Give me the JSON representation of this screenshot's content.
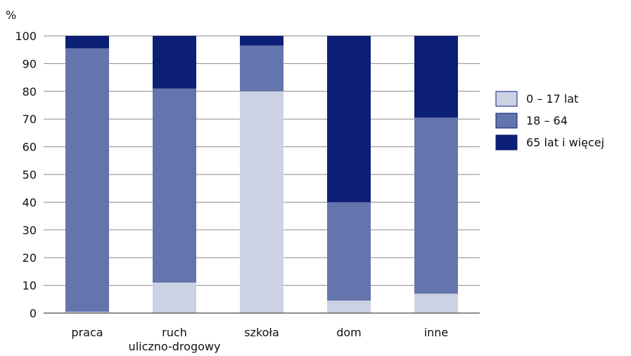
{
  "chart_data": {
    "type": "bar",
    "stacked": true,
    "ylabel": "%",
    "ylim": [
      0,
      100
    ],
    "yticks": [
      "0",
      "10",
      "20",
      "30",
      "40",
      "50",
      "60",
      "70",
      "80",
      "90",
      "100"
    ],
    "categories": [
      [
        "praca"
      ],
      [
        "ruch",
        "uliczno-drogowy"
      ],
      [
        "szkoła"
      ],
      [
        "dom"
      ],
      [
        "inne"
      ]
    ],
    "series": [
      {
        "name": "0 – 17 lat",
        "color": "#ccd1e4",
        "values": [
          0.5,
          11,
          80,
          4.5,
          7
        ]
      },
      {
        "name": "18 – 64",
        "color": "#6474ad",
        "values": [
          95,
          70,
          16.5,
          35.5,
          63.5
        ]
      },
      {
        "name": "65 lat i więcej",
        "color": "#0b1f74",
        "values": [
          4.5,
          19,
          3.5,
          60,
          29.5
        ]
      }
    ],
    "grid": true,
    "gridlines": "horizontal",
    "legend_position": "right"
  }
}
